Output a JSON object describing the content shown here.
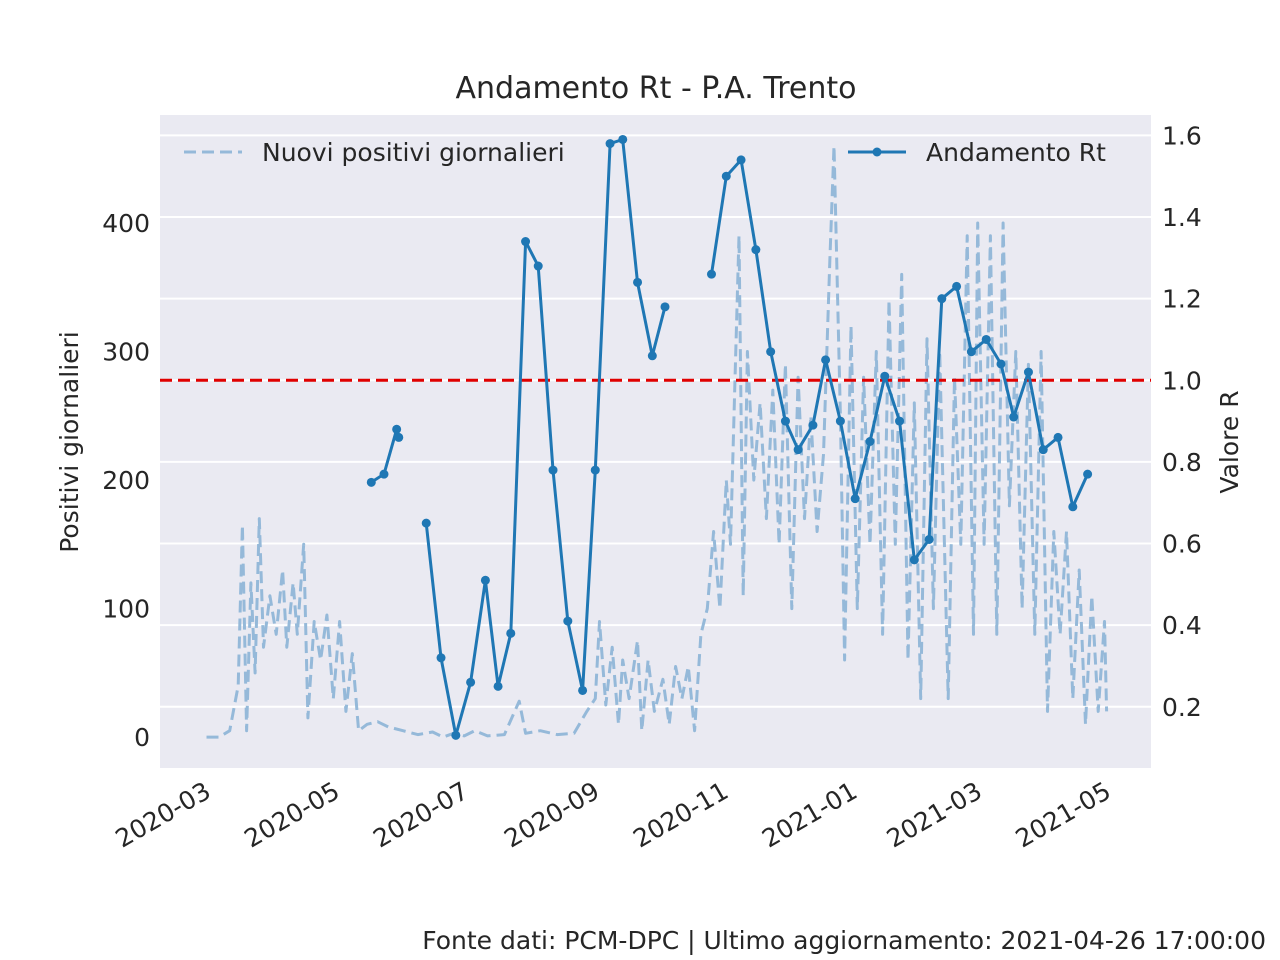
{
  "chart_data": {
    "type": "line",
    "title": "Andamento Rt - P.A. Trento",
    "xlabel": "",
    "ylabel_left": "Positivi giornalieri",
    "ylabel_right": "Valore R",
    "x_ticks": [
      "2020-03",
      "2020-05",
      "2020-07",
      "2020-09",
      "2020-11",
      "2021-01",
      "2021-03",
      "2021-05"
    ],
    "y_left_ticks": [
      0,
      100,
      200,
      300,
      400
    ],
    "y_right_ticks": [
      0.2,
      0.4,
      0.6,
      0.8,
      1.0,
      1.2,
      1.4,
      1.6
    ],
    "y_left_lim": [
      -24,
      484
    ],
    "y_right_lim": [
      0.05,
      1.65
    ],
    "x_lim": [
      "2020-02-08",
      "2021-05-22"
    ],
    "grid": true,
    "colors": {
      "background": "#eaeaf2",
      "grid": "#ffffff",
      "rt": "#1f77b4",
      "daily": "#95b9d9",
      "threshold": "#e00000"
    },
    "threshold": 1.0,
    "legend_left": {
      "label": "Nuovi positivi giornalieri",
      "placement": "upper left"
    },
    "legend_right": {
      "label": "Andamento Rt",
      "placement": "upper right"
    },
    "series": [
      {
        "name": "Nuovi positivi giornalieri",
        "style": "dashed",
        "axis": "left",
        "points": [
          [
            "2020-03-01",
            0
          ],
          [
            "2020-03-07",
            0
          ],
          [
            "2020-03-12",
            5
          ],
          [
            "2020-03-16",
            40
          ],
          [
            "2020-03-18",
            165
          ],
          [
            "2020-03-20",
            5
          ],
          [
            "2020-03-22",
            120
          ],
          [
            "2020-03-24",
            50
          ],
          [
            "2020-03-26",
            170
          ],
          [
            "2020-03-28",
            70
          ],
          [
            "2020-03-31",
            110
          ],
          [
            "2020-04-03",
            80
          ],
          [
            "2020-04-06",
            130
          ],
          [
            "2020-04-08",
            70
          ],
          [
            "2020-04-11",
            120
          ],
          [
            "2020-04-13",
            80
          ],
          [
            "2020-04-16",
            150
          ],
          [
            "2020-04-18",
            15
          ],
          [
            "2020-04-21",
            90
          ],
          [
            "2020-04-24",
            60
          ],
          [
            "2020-04-27",
            95
          ],
          [
            "2020-04-30",
            30
          ],
          [
            "2020-05-03",
            90
          ],
          [
            "2020-05-06",
            20
          ],
          [
            "2020-05-09",
            65
          ],
          [
            "2020-05-12",
            5
          ],
          [
            "2020-05-16",
            10
          ],
          [
            "2020-05-21",
            12
          ],
          [
            "2020-05-26",
            8
          ],
          [
            "2020-06-02",
            5
          ],
          [
            "2020-06-09",
            2
          ],
          [
            "2020-06-16",
            4
          ],
          [
            "2020-06-21",
            0
          ],
          [
            "2020-06-26",
            3
          ],
          [
            "2020-07-01",
            1
          ],
          [
            "2020-07-06",
            5
          ],
          [
            "2020-07-12",
            1
          ],
          [
            "2020-07-20",
            2
          ],
          [
            "2020-07-27",
            28
          ],
          [
            "2020-07-30",
            3
          ],
          [
            "2020-08-06",
            5
          ],
          [
            "2020-08-14",
            2
          ],
          [
            "2020-08-22",
            3
          ],
          [
            "2020-08-28",
            20
          ],
          [
            "2020-09-01",
            30
          ],
          [
            "2020-09-03",
            90
          ],
          [
            "2020-09-06",
            25
          ],
          [
            "2020-09-09",
            70
          ],
          [
            "2020-09-12",
            10
          ],
          [
            "2020-09-14",
            60
          ],
          [
            "2020-09-17",
            30
          ],
          [
            "2020-09-21",
            75
          ],
          [
            "2020-09-23",
            5
          ],
          [
            "2020-09-26",
            60
          ],
          [
            "2020-09-29",
            20
          ],
          [
            "2020-10-03",
            45
          ],
          [
            "2020-10-06",
            10
          ],
          [
            "2020-10-09",
            55
          ],
          [
            "2020-10-12",
            30
          ],
          [
            "2020-10-15",
            55
          ],
          [
            "2020-10-18",
            5
          ],
          [
            "2020-10-21",
            80
          ],
          [
            "2020-10-24",
            100
          ],
          [
            "2020-10-27",
            160
          ],
          [
            "2020-10-30",
            100
          ],
          [
            "2020-11-02",
            200
          ],
          [
            "2020-11-04",
            150
          ],
          [
            "2020-11-06",
            270
          ],
          [
            "2020-11-08",
            390
          ],
          [
            "2020-11-10",
            110
          ],
          [
            "2020-11-12",
            300
          ],
          [
            "2020-11-15",
            200
          ],
          [
            "2020-11-18",
            260
          ],
          [
            "2020-11-21",
            170
          ],
          [
            "2020-11-24",
            270
          ],
          [
            "2020-11-27",
            150
          ],
          [
            "2020-11-30",
            290
          ],
          [
            "2020-12-03",
            100
          ],
          [
            "2020-12-06",
            280
          ],
          [
            "2020-12-09",
            170
          ],
          [
            "2020-12-12",
            250
          ],
          [
            "2020-12-15",
            160
          ],
          [
            "2020-12-18",
            220
          ],
          [
            "2020-12-21",
            370
          ],
          [
            "2020-12-23",
            460
          ],
          [
            "2020-12-26",
            250
          ],
          [
            "2020-12-28",
            60
          ],
          [
            "2020-12-31",
            320
          ],
          [
            "2021-01-03",
            100
          ],
          [
            "2021-01-06",
            280
          ],
          [
            "2021-01-09",
            150
          ],
          [
            "2021-01-12",
            300
          ],
          [
            "2021-01-15",
            80
          ],
          [
            "2021-01-18",
            340
          ],
          [
            "2021-01-21",
            150
          ],
          [
            "2021-01-24",
            360
          ],
          [
            "2021-01-27",
            60
          ],
          [
            "2021-01-30",
            260
          ],
          [
            "2021-02-02",
            30
          ],
          [
            "2021-02-05",
            310
          ],
          [
            "2021-02-08",
            100
          ],
          [
            "2021-02-11",
            300
          ],
          [
            "2021-02-15",
            30
          ],
          [
            "2021-02-18",
            280
          ],
          [
            "2021-02-21",
            150
          ],
          [
            "2021-02-24",
            390
          ],
          [
            "2021-02-27",
            80
          ],
          [
            "2021-03-01",
            400
          ],
          [
            "2021-03-04",
            150
          ],
          [
            "2021-03-07",
            390
          ],
          [
            "2021-03-10",
            80
          ],
          [
            "2021-03-13",
            400
          ],
          [
            "2021-03-16",
            180
          ],
          [
            "2021-03-19",
            300
          ],
          [
            "2021-03-22",
            100
          ],
          [
            "2021-03-25",
            290
          ],
          [
            "2021-03-28",
            80
          ],
          [
            "2021-03-31",
            300
          ],
          [
            "2021-04-03",
            20
          ],
          [
            "2021-04-06",
            160
          ],
          [
            "2021-04-09",
            80
          ],
          [
            "2021-04-12",
            160
          ],
          [
            "2021-04-15",
            30
          ],
          [
            "2021-04-18",
            130
          ],
          [
            "2021-04-21",
            10
          ],
          [
            "2021-04-24",
            110
          ],
          [
            "2021-04-27",
            20
          ],
          [
            "2021-04-30",
            90
          ],
          [
            "2021-05-01",
            20
          ]
        ]
      },
      {
        "name": "Andamento Rt",
        "style": "solid-markers",
        "axis": "right",
        "points": [
          [
            "2020-05-18",
            0.75
          ],
          [
            "2020-05-24",
            0.77
          ],
          [
            "2020-05-30",
            0.88
          ],
          [
            "2020-05-31",
            0.86
          ],
          [
            "2020-06-13",
            0.65
          ],
          [
            "2020-06-20",
            0.32
          ],
          [
            "2020-06-27",
            0.13
          ],
          [
            "2020-07-04",
            0.26
          ],
          [
            "2020-07-11",
            0.51
          ],
          [
            "2020-07-17",
            0.25
          ],
          [
            "2020-07-23",
            0.38
          ],
          [
            "2020-07-30",
            1.34
          ],
          [
            "2020-08-05",
            1.28
          ],
          [
            "2020-08-12",
            0.78
          ],
          [
            "2020-08-19",
            0.41
          ],
          [
            "2020-08-26",
            0.24
          ],
          [
            "2020-09-01",
            0.78
          ],
          [
            "2020-09-08",
            1.58
          ],
          [
            "2020-09-14",
            1.59
          ],
          [
            "2020-09-21",
            1.24
          ],
          [
            "2020-09-28",
            1.06
          ],
          [
            "2020-10-04",
            1.18
          ],
          [
            "2020-10-26",
            1.26
          ],
          [
            "2020-11-02",
            1.5
          ],
          [
            "2020-11-09",
            1.54
          ],
          [
            "2020-11-16",
            1.32
          ],
          [
            "2020-11-23",
            1.07
          ],
          [
            "2020-11-30",
            0.9
          ],
          [
            "2020-12-06",
            0.83
          ],
          [
            "2020-12-13",
            0.89
          ],
          [
            "2020-12-19",
            1.05
          ],
          [
            "2020-12-26",
            0.9
          ],
          [
            "2021-01-02",
            0.71
          ],
          [
            "2021-01-09",
            0.85
          ],
          [
            "2021-01-16",
            1.01
          ],
          [
            "2021-01-23",
            0.9
          ],
          [
            "2021-01-30",
            0.56
          ],
          [
            "2021-02-06",
            0.61
          ],
          [
            "2021-02-12",
            1.2
          ],
          [
            "2021-02-19",
            1.23
          ],
          [
            "2021-02-26",
            1.07
          ],
          [
            "2021-03-05",
            1.1
          ],
          [
            "2021-03-12",
            1.04
          ],
          [
            "2021-03-18",
            0.91
          ],
          [
            "2021-03-25",
            1.02
          ],
          [
            "2021-04-01",
            0.83
          ],
          [
            "2021-04-08",
            0.86
          ],
          [
            "2021-04-15",
            0.69
          ],
          [
            "2021-04-22",
            0.77
          ]
        ]
      }
    ]
  },
  "footer": "Fonte dati: PCM-DPC | Ultimo aggiornamento: 2021-04-26 17:00:00"
}
